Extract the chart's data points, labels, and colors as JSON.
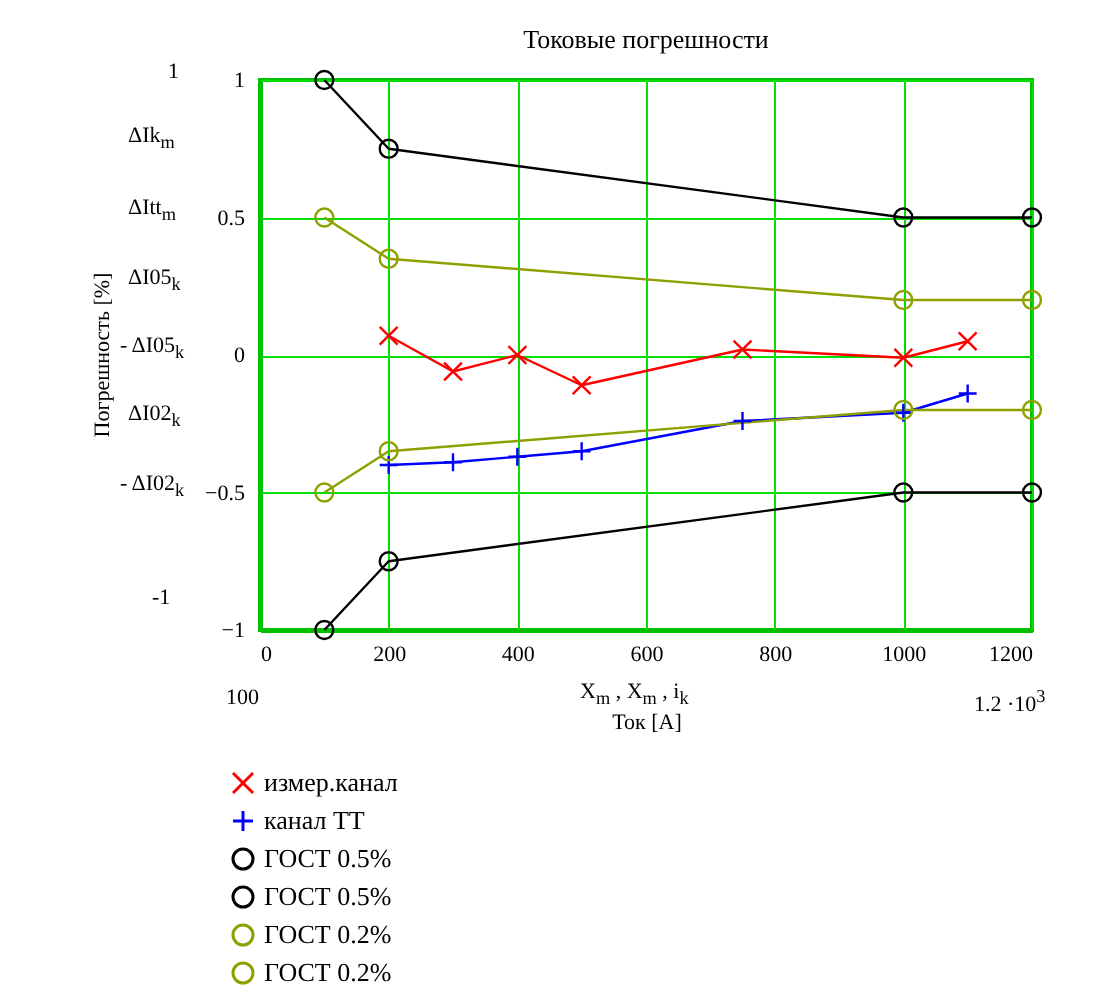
{
  "chart_data": {
    "type": "line",
    "title": "Токовые погрешности",
    "xlabel": "Ток [A]",
    "ylabel": "Погрешность [%]",
    "xlim": [
      0,
      1200
    ],
    "xticks": [
      0,
      200,
      400,
      600,
      800,
      1000,
      1200
    ],
    "ylim": [
      -1,
      1
    ],
    "yticks": [
      -1,
      -0.5,
      0,
      0.5,
      1
    ],
    "grid": true,
    "legend": "bottom left",
    "line_style": "solid",
    "annotations": [
      "1",
      "-1",
      "100",
      "1.2 ·10$^{3}$",
      "X$_{m}$ , X$_{m}$ , i$_{k}$",
      "ΔIk$_{m}$",
      "ΔItt$_{m}$",
      "ΔI05$_{k}$",
      "- ΔI05$_{k}$",
      "ΔI02$_{k}$",
      "- ΔI02$_{k}$"
    ],
    "series": [
      {
        "name": "измер.канал",
        "color": "#ff0000",
        "marker": "x",
        "x": [
          200,
          300,
          400,
          500,
          750,
          1000,
          1100
        ],
        "values": [
          0.07,
          -0.06,
          0.0,
          -0.11,
          0.02,
          -0.01,
          0.05
        ]
      },
      {
        "name": "канал ТТ",
        "color": "#0000ff",
        "marker": "cross",
        "x": [
          200,
          300,
          400,
          500,
          750,
          1000,
          1100
        ],
        "values": [
          -0.4,
          -0.39,
          -0.37,
          -0.35,
          -0.24,
          -0.21,
          -0.14
        ]
      },
      {
        "name": "ГОСТ 0.5%",
        "color": "#000000",
        "marker": "circle",
        "x": [
          100,
          200,
          1000,
          1200
        ],
        "values": [
          1,
          0.75,
          0.5,
          0.5
        ]
      },
      {
        "name": "ГОСТ 0.5%",
        "color": "#000000",
        "marker": "circle",
        "x": [
          100,
          200,
          1000,
          1200
        ],
        "values": [
          -1,
          -0.75,
          -0.5,
          -0.5
        ]
      },
      {
        "name": "ГОСТ 0.2%",
        "color": "#8ea000",
        "marker": "circle",
        "x": [
          100,
          200,
          1000,
          1200
        ],
        "values": [
          0.5,
          0.35,
          0.2,
          0.2
        ]
      },
      {
        "name": "ГОСТ 0.2%",
        "color": "#8ea000",
        "marker": "circle",
        "x": [
          100,
          200,
          1000,
          1200
        ],
        "values": [
          -0.5,
          -0.35,
          -0.2,
          -0.2
        ]
      }
    ]
  }
}
